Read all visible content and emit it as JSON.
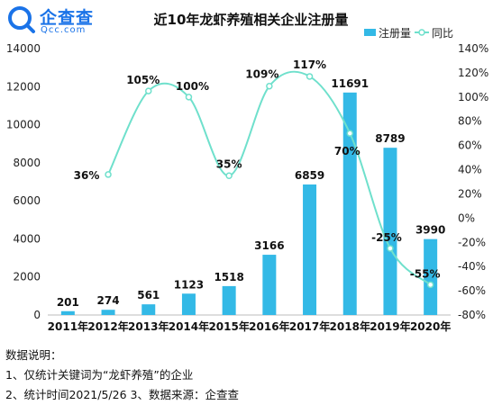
{
  "brand": {
    "name": "企查查",
    "sub": "Qcc.com"
  },
  "chart_data": {
    "type": "bar",
    "title": "近10年龙虾养殖相关企业注册量",
    "categories": [
      "2011年",
      "2012年",
      "2013年",
      "2014年",
      "2015年",
      "2016年",
      "2017年",
      "2018年",
      "2019年",
      "2020年"
    ],
    "series": [
      {
        "name": "注册量",
        "type": "bar",
        "axis": "left",
        "color": "#33b9e6",
        "values": [
          201,
          274,
          561,
          1123,
          1518,
          3166,
          6859,
          11691,
          8789,
          3990
        ]
      },
      {
        "name": "同比",
        "type": "line",
        "axis": "right",
        "color": "#6fe0cc",
        "values": [
          null,
          36,
          105,
          100,
          35,
          109,
          117,
          70,
          -25,
          -55
        ],
        "labels": [
          "",
          "36%",
          "105%",
          "100%",
          "35%",
          "109%",
          "117%",
          "70%",
          "-25%",
          "-55%"
        ]
      }
    ],
    "ylim_left": [
      0,
      14000
    ],
    "ylim_right": [
      -80,
      140
    ],
    "yticks_left": [
      "0",
      "2000",
      "4000",
      "6000",
      "8000",
      "10000",
      "12000",
      "14000"
    ],
    "yticks_right": [
      "-80%",
      "-60%",
      "-40%",
      "-20%",
      "0%",
      "20%",
      "40%",
      "60%",
      "80%",
      "100%",
      "120%",
      "140%"
    ],
    "grid": false,
    "legend_position": "top-right"
  },
  "notes": {
    "heading": "数据说明：",
    "line1": "1、仅统计关键词为“龙虾养殖”的企业",
    "line2": "2、统计时间2021/5/26   3、数据来源：企查查"
  }
}
